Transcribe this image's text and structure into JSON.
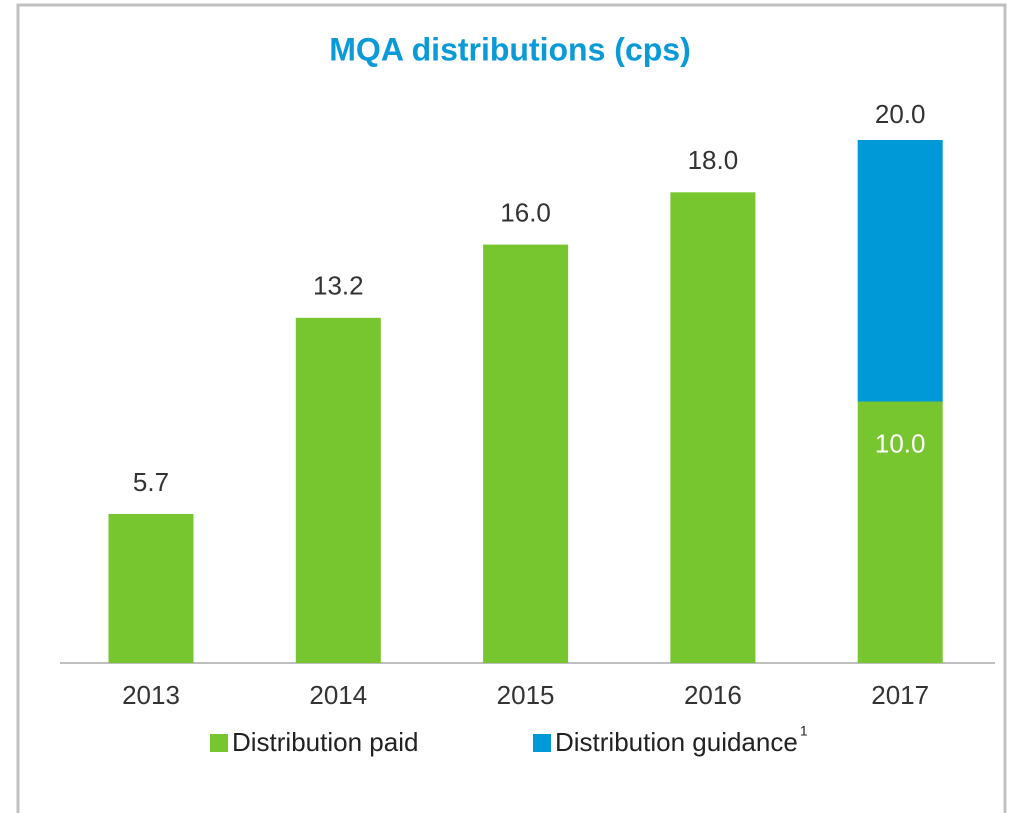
{
  "chart_data": {
    "type": "stacked_bar",
    "title": "MQA distributions (cps)",
    "categories": [
      "2013",
      "2014",
      "2015",
      "2016",
      "2017"
    ],
    "series": [
      {
        "name": "Distribution paid",
        "color": "#77c52f",
        "values": [
          5.7,
          13.2,
          16.0,
          18.0,
          10.0
        ],
        "value_labels": [
          "5.7",
          "13.2",
          "16.0",
          "18.0",
          "10.0"
        ]
      },
      {
        "name": "Distribution guidance",
        "footnote": "1",
        "color": "#0099d8",
        "values": [
          null,
          null,
          null,
          null,
          10.0
        ]
      }
    ],
    "stack_totals": [
      null,
      null,
      null,
      null,
      20.0
    ],
    "stack_total_labels": [
      null,
      null,
      null,
      null,
      "20.0"
    ],
    "ylim": [
      0,
      20
    ],
    "grid": false,
    "legend": "bottom"
  }
}
